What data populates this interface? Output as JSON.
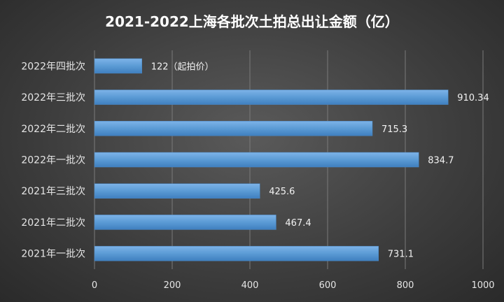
{
  "chart_data": {
    "type": "bar",
    "orientation": "horizontal",
    "title": "2021-2022上海各批次土拍总出让金额（亿）",
    "categories": [
      "2022年四批次",
      "2022年三批次",
      "2022年二批次",
      "2022年一批次",
      "2021年三批次",
      "2021年二批次",
      "2021年一批次"
    ],
    "values": [
      122,
      910.34,
      715.3,
      834.7,
      425.6,
      467.4,
      731.1
    ],
    "value_labels": [
      "122（起拍价）",
      "910.34",
      "715.3",
      "834.7",
      "425.6",
      "467.4",
      "731.1"
    ],
    "xlim": [
      0,
      1000
    ],
    "xticks": [
      "0",
      "200",
      "400",
      "600",
      "800",
      "1000"
    ],
    "xlabel": "",
    "ylabel": "",
    "grid": "vertical",
    "legend": "none",
    "bar_color": "#5b9bd5"
  }
}
